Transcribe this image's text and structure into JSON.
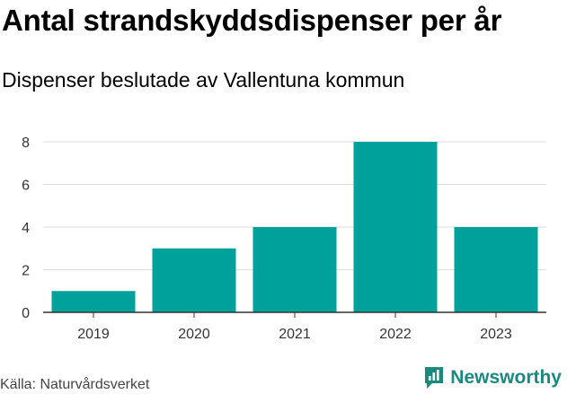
{
  "header": {
    "title": "Antal strandskyddsdispenser per år",
    "subtitle": "Dispenser beslutade av Vallentuna kommun"
  },
  "footer": {
    "source": "Källa: Naturvårdsverket",
    "brand": "Newsworthy"
  },
  "colors": {
    "bar": "#00a19a",
    "grid": "#dddddd",
    "axis": "#333333",
    "brand": "#1b8a7e"
  },
  "chart_data": {
    "type": "bar",
    "title": "Antal strandskyddsdispenser per år",
    "subtitle": "Dispenser beslutade av Vallentuna kommun",
    "categories": [
      "2019",
      "2020",
      "2021",
      "2022",
      "2023"
    ],
    "values": [
      1,
      3,
      4,
      8,
      4
    ],
    "yticks": [
      0,
      2,
      4,
      6,
      8
    ],
    "ylim": [
      0,
      8
    ],
    "xlabel": "",
    "ylabel": "",
    "grid": true
  }
}
